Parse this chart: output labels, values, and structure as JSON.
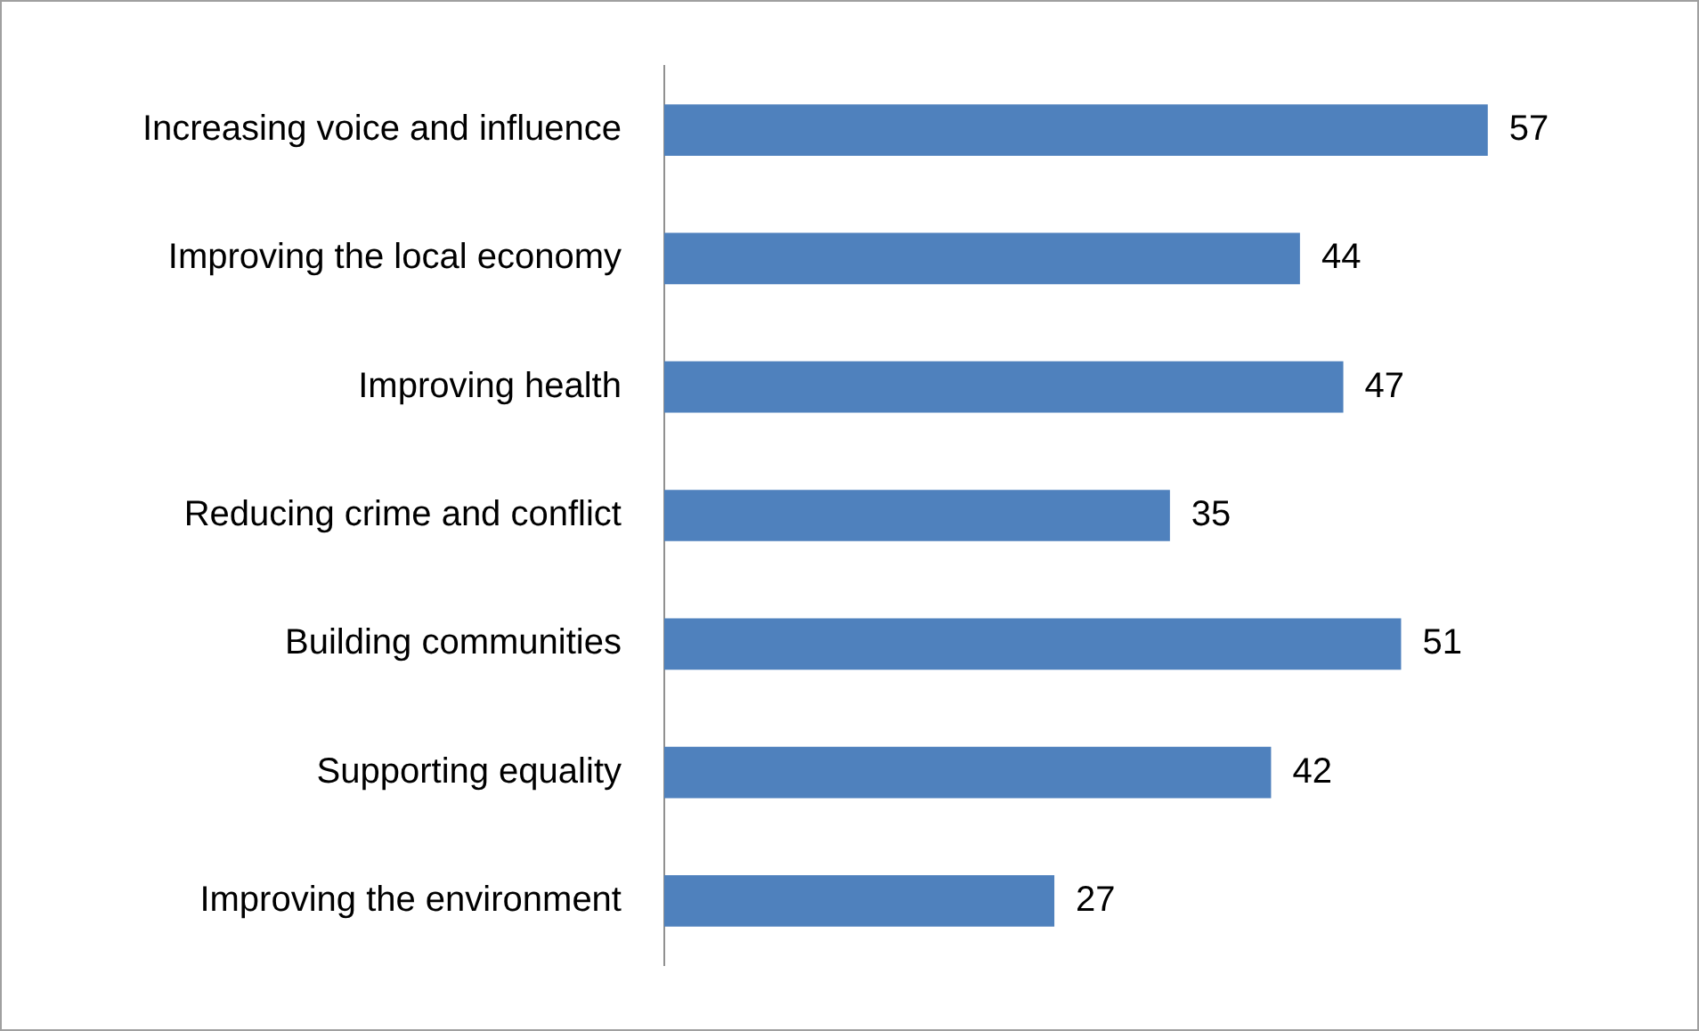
{
  "chart_data": {
    "type": "bar",
    "orientation": "horizontal",
    "categories": [
      "Increasing voice and influence",
      "Improving the local economy",
      "Improving health",
      "Reducing crime and conflict",
      "Building communities",
      "Supporting equality",
      "Improving the environment"
    ],
    "values": [
      57,
      44,
      47,
      35,
      51,
      42,
      27
    ],
    "color": "#4f81bd",
    "data_labels": true
  }
}
